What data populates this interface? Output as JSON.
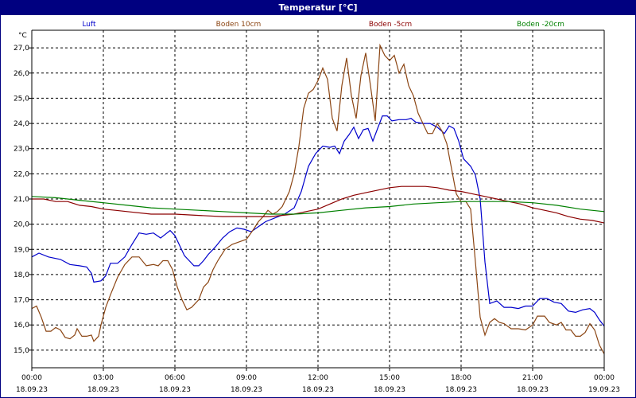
{
  "window": {
    "title": "Temperatur [°C]"
  },
  "chart_data": {
    "type": "line",
    "title": "Temperatur [°C]",
    "ylabel": "°C",
    "xlabel": "",
    "ylim": [
      14.3,
      27.7
    ],
    "grid": true,
    "legend_placement": "top",
    "y_ticks": [
      "15,0",
      "16,0",
      "17,0",
      "18,0",
      "19,0",
      "20,0",
      "21,0",
      "22,0",
      "23,0",
      "24,0",
      "25,0",
      "26,0",
      "27,0"
    ],
    "x_ticks": [
      {
        "time": "00:00",
        "date": "18.09.23"
      },
      {
        "time": "03:00",
        "date": "18.09.23"
      },
      {
        "time": "06:00",
        "date": "18.09.23"
      },
      {
        "time": "09:00",
        "date": "18.09.23"
      },
      {
        "time": "12:00",
        "date": "18.09.23"
      },
      {
        "time": "15:00",
        "date": "18.09.23"
      },
      {
        "time": "18:00",
        "date": "18.09.23"
      },
      {
        "time": "21:00",
        "date": "18.09.23"
      },
      {
        "time": "00:00",
        "date": "19.09.23"
      }
    ],
    "x_range_hours": [
      0,
      24
    ],
    "series": [
      {
        "name": "Luft",
        "color": "#0000cc",
        "points": [
          [
            0,
            18.7
          ],
          [
            0.3,
            18.85
          ],
          [
            0.7,
            18.7
          ],
          [
            1.2,
            18.6
          ],
          [
            1.6,
            18.4
          ],
          [
            2.0,
            18.35
          ],
          [
            2.3,
            18.3
          ],
          [
            2.5,
            18.05
          ],
          [
            2.6,
            17.7
          ],
          [
            2.9,
            17.75
          ],
          [
            3.1,
            17.95
          ],
          [
            3.3,
            18.45
          ],
          [
            3.6,
            18.45
          ],
          [
            3.9,
            18.7
          ],
          [
            4.2,
            19.2
          ],
          [
            4.5,
            19.65
          ],
          [
            4.8,
            19.6
          ],
          [
            5.1,
            19.65
          ],
          [
            5.4,
            19.45
          ],
          [
            5.6,
            19.6
          ],
          [
            5.8,
            19.75
          ],
          [
            6.0,
            19.55
          ],
          [
            6.2,
            19.15
          ],
          [
            6.4,
            18.75
          ],
          [
            6.6,
            18.55
          ],
          [
            6.8,
            18.35
          ],
          [
            7.0,
            18.35
          ],
          [
            7.2,
            18.55
          ],
          [
            7.4,
            18.8
          ],
          [
            7.7,
            19.1
          ],
          [
            8.0,
            19.45
          ],
          [
            8.3,
            19.7
          ],
          [
            8.6,
            19.85
          ],
          [
            8.9,
            19.8
          ],
          [
            9.2,
            19.7
          ],
          [
            9.5,
            19.9
          ],
          [
            9.8,
            20.1
          ],
          [
            10.2,
            20.25
          ],
          [
            10.6,
            20.4
          ],
          [
            11.0,
            20.65
          ],
          [
            11.3,
            21.3
          ],
          [
            11.6,
            22.3
          ],
          [
            11.9,
            22.8
          ],
          [
            12.2,
            23.1
          ],
          [
            12.5,
            23.05
          ],
          [
            12.7,
            23.1
          ],
          [
            12.9,
            22.8
          ],
          [
            13.1,
            23.3
          ],
          [
            13.3,
            23.55
          ],
          [
            13.5,
            23.85
          ],
          [
            13.7,
            23.4
          ],
          [
            13.9,
            23.75
          ],
          [
            14.1,
            23.8
          ],
          [
            14.3,
            23.3
          ],
          [
            14.5,
            23.8
          ],
          [
            14.7,
            24.3
          ],
          [
            14.9,
            24.3
          ],
          [
            15.1,
            24.1
          ],
          [
            15.4,
            24.15
          ],
          [
            15.7,
            24.15
          ],
          [
            15.9,
            24.2
          ],
          [
            16.1,
            24.05
          ],
          [
            16.4,
            24.0
          ],
          [
            16.7,
            24.0
          ],
          [
            17.0,
            23.85
          ],
          [
            17.3,
            23.6
          ],
          [
            17.5,
            23.9
          ],
          [
            17.7,
            23.8
          ],
          [
            17.9,
            23.3
          ],
          [
            18.1,
            22.6
          ],
          [
            18.4,
            22.3
          ],
          [
            18.6,
            21.95
          ],
          [
            18.8,
            21.0
          ],
          [
            19.0,
            18.5
          ],
          [
            19.2,
            16.85
          ],
          [
            19.5,
            16.95
          ],
          [
            19.8,
            16.7
          ],
          [
            20.1,
            16.7
          ],
          [
            20.4,
            16.65
          ],
          [
            20.7,
            16.75
          ],
          [
            21.0,
            16.75
          ],
          [
            21.3,
            17.05
          ],
          [
            21.6,
            17.05
          ],
          [
            21.9,
            16.9
          ],
          [
            22.2,
            16.85
          ],
          [
            22.5,
            16.55
          ],
          [
            22.8,
            16.5
          ],
          [
            23.1,
            16.6
          ],
          [
            23.4,
            16.65
          ],
          [
            23.6,
            16.5
          ],
          [
            23.8,
            16.2
          ],
          [
            24,
            15.95
          ]
        ]
      },
      {
        "name": "Boden 10cm",
        "color": "#8b4513",
        "points": [
          [
            0,
            16.65
          ],
          [
            0.2,
            16.75
          ],
          [
            0.4,
            16.3
          ],
          [
            0.6,
            15.75
          ],
          [
            0.8,
            15.75
          ],
          [
            1.0,
            15.9
          ],
          [
            1.2,
            15.8
          ],
          [
            1.4,
            15.5
          ],
          [
            1.6,
            15.45
          ],
          [
            1.8,
            15.6
          ],
          [
            1.9,
            15.85
          ],
          [
            2.1,
            15.55
          ],
          [
            2.3,
            15.55
          ],
          [
            2.5,
            15.6
          ],
          [
            2.6,
            15.35
          ],
          [
            2.8,
            15.55
          ],
          [
            2.9,
            16.0
          ],
          [
            3.1,
            16.7
          ],
          [
            3.3,
            17.2
          ],
          [
            3.6,
            17.9
          ],
          [
            3.9,
            18.4
          ],
          [
            4.2,
            18.7
          ],
          [
            4.5,
            18.7
          ],
          [
            4.8,
            18.35
          ],
          [
            5.1,
            18.4
          ],
          [
            5.3,
            18.35
          ],
          [
            5.5,
            18.55
          ],
          [
            5.7,
            18.55
          ],
          [
            5.9,
            18.2
          ],
          [
            6.1,
            17.5
          ],
          [
            6.3,
            17.0
          ],
          [
            6.5,
            16.6
          ],
          [
            6.7,
            16.7
          ],
          [
            7.0,
            17.0
          ],
          [
            7.2,
            17.5
          ],
          [
            7.4,
            17.7
          ],
          [
            7.6,
            18.2
          ],
          [
            7.8,
            18.55
          ],
          [
            8.1,
            19.0
          ],
          [
            8.4,
            19.2
          ],
          [
            8.7,
            19.3
          ],
          [
            9.0,
            19.4
          ],
          [
            9.3,
            19.8
          ],
          [
            9.5,
            20.1
          ],
          [
            9.7,
            20.3
          ],
          [
            9.9,
            20.55
          ],
          [
            10.1,
            20.4
          ],
          [
            10.3,
            20.5
          ],
          [
            10.5,
            20.7
          ],
          [
            10.8,
            21.3
          ],
          [
            11.0,
            22.0
          ],
          [
            11.2,
            23.1
          ],
          [
            11.4,
            24.6
          ],
          [
            11.6,
            25.2
          ],
          [
            11.8,
            25.35
          ],
          [
            12.0,
            25.7
          ],
          [
            12.2,
            26.2
          ],
          [
            12.4,
            25.75
          ],
          [
            12.6,
            24.2
          ],
          [
            12.8,
            23.7
          ],
          [
            13.0,
            25.5
          ],
          [
            13.2,
            26.6
          ],
          [
            13.4,
            25.1
          ],
          [
            13.6,
            24.2
          ],
          [
            13.8,
            25.9
          ],
          [
            14.0,
            26.8
          ],
          [
            14.2,
            25.5
          ],
          [
            14.4,
            24.1
          ],
          [
            14.6,
            27.1
          ],
          [
            14.8,
            26.7
          ],
          [
            15.0,
            26.5
          ],
          [
            15.2,
            26.7
          ],
          [
            15.4,
            26.0
          ],
          [
            15.6,
            26.35
          ],
          [
            15.8,
            25.5
          ],
          [
            16.0,
            25.1
          ],
          [
            16.2,
            24.4
          ],
          [
            16.4,
            24.0
          ],
          [
            16.6,
            23.6
          ],
          [
            16.8,
            23.6
          ],
          [
            17.0,
            24.0
          ],
          [
            17.2,
            23.7
          ],
          [
            17.4,
            23.2
          ],
          [
            17.6,
            22.2
          ],
          [
            17.8,
            21.2
          ],
          [
            18.0,
            20.9
          ],
          [
            18.2,
            20.9
          ],
          [
            18.4,
            20.6
          ],
          [
            18.6,
            18.5
          ],
          [
            18.8,
            16.3
          ],
          [
            19.0,
            15.6
          ],
          [
            19.2,
            16.1
          ],
          [
            19.4,
            16.25
          ],
          [
            19.6,
            16.1
          ],
          [
            19.8,
            16.05
          ],
          [
            20.1,
            15.85
          ],
          [
            20.4,
            15.85
          ],
          [
            20.7,
            15.8
          ],
          [
            21.0,
            16.0
          ],
          [
            21.2,
            16.35
          ],
          [
            21.5,
            16.35
          ],
          [
            21.7,
            16.1
          ],
          [
            22.0,
            16.0
          ],
          [
            22.2,
            16.1
          ],
          [
            22.4,
            15.8
          ],
          [
            22.6,
            15.8
          ],
          [
            22.8,
            15.55
          ],
          [
            23.0,
            15.55
          ],
          [
            23.2,
            15.7
          ],
          [
            23.4,
            16.05
          ],
          [
            23.6,
            15.8
          ],
          [
            23.8,
            15.2
          ],
          [
            24,
            14.85
          ]
        ]
      },
      {
        "name": "Boden -5cm",
        "color": "#8b0000",
        "points": [
          [
            0,
            21.0
          ],
          [
            0.5,
            21.0
          ],
          [
            1.0,
            20.9
          ],
          [
            1.5,
            20.9
          ],
          [
            2.0,
            20.75
          ],
          [
            2.5,
            20.7
          ],
          [
            3.0,
            20.6
          ],
          [
            3.5,
            20.55
          ],
          [
            4.0,
            20.5
          ],
          [
            5.0,
            20.4
          ],
          [
            6.0,
            20.4
          ],
          [
            7.0,
            20.35
          ],
          [
            8.0,
            20.3
          ],
          [
            9.0,
            20.3
          ],
          [
            10.0,
            20.3
          ],
          [
            11.0,
            20.4
          ],
          [
            11.5,
            20.5
          ],
          [
            12.0,
            20.6
          ],
          [
            12.5,
            20.8
          ],
          [
            13.0,
            21.0
          ],
          [
            13.5,
            21.15
          ],
          [
            14.0,
            21.25
          ],
          [
            14.5,
            21.35
          ],
          [
            15.0,
            21.45
          ],
          [
            15.5,
            21.5
          ],
          [
            16.0,
            21.5
          ],
          [
            16.5,
            21.5
          ],
          [
            17.0,
            21.45
          ],
          [
            17.5,
            21.35
          ],
          [
            18.0,
            21.3
          ],
          [
            18.5,
            21.2
          ],
          [
            19.0,
            21.1
          ],
          [
            19.5,
            21.0
          ],
          [
            20.0,
            20.9
          ],
          [
            20.5,
            20.8
          ],
          [
            21.0,
            20.65
          ],
          [
            21.5,
            20.55
          ],
          [
            22.0,
            20.45
          ],
          [
            22.5,
            20.3
          ],
          [
            23.0,
            20.2
          ],
          [
            23.5,
            20.15
          ],
          [
            24,
            20.05
          ]
        ]
      },
      {
        "name": "Boden -20cm",
        "color": "#008000",
        "points": [
          [
            0,
            21.1
          ],
          [
            1.0,
            21.05
          ],
          [
            2.0,
            20.95
          ],
          [
            3.0,
            20.85
          ],
          [
            4.0,
            20.75
          ],
          [
            5.0,
            20.65
          ],
          [
            6.0,
            20.6
          ],
          [
            7.0,
            20.55
          ],
          [
            8.0,
            20.5
          ],
          [
            9.0,
            20.45
          ],
          [
            10.0,
            20.4
          ],
          [
            11.0,
            20.4
          ],
          [
            12.0,
            20.45
          ],
          [
            13.0,
            20.55
          ],
          [
            14.0,
            20.65
          ],
          [
            15.0,
            20.7
          ],
          [
            16.0,
            20.8
          ],
          [
            17.0,
            20.85
          ],
          [
            18.0,
            20.9
          ],
          [
            19.0,
            20.9
          ],
          [
            20.0,
            20.9
          ],
          [
            21.0,
            20.85
          ],
          [
            22.0,
            20.75
          ],
          [
            23.0,
            20.6
          ],
          [
            24,
            20.5
          ]
        ]
      }
    ]
  }
}
